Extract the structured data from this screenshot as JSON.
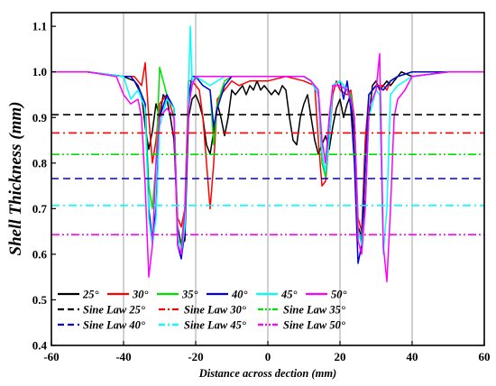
{
  "chart_data": {
    "type": "line",
    "title": "",
    "xlabel": "Distance across dection (mm)",
    "ylabel": "Shell Thickness (mm)",
    "xlim": [
      -60,
      60
    ],
    "ylim": [
      0.4,
      1.13
    ],
    "xticks": [
      "-60",
      "-40",
      "-20",
      "0",
      "20",
      "40",
      "60"
    ],
    "yticks": [
      "0.4",
      "0.5",
      "0.6",
      "0.7",
      "0.8",
      "0.9",
      "1.0",
      "1.1"
    ],
    "grid": "vertical",
    "legend_position": "bottom-left",
    "series": [
      {
        "name": "25°",
        "color": "#000000",
        "style": "solid",
        "x": [
          -60,
          -50,
          -40,
          -37,
          -35,
          -34,
          -33,
          -32,
          -31,
          -30,
          -29,
          -28,
          -27,
          -26,
          -25,
          -24,
          -23,
          -22,
          -21,
          -20,
          -19,
          -18,
          -17,
          -16,
          -15,
          -14,
          -13,
          -12,
          -11,
          -10,
          -9,
          -8,
          -7,
          -6,
          -5,
          -4,
          -3,
          -2,
          -1,
          0,
          1,
          2,
          3,
          4,
          5,
          6,
          7,
          8,
          9,
          10,
          11,
          12,
          13,
          14,
          15,
          16,
          17,
          18,
          19,
          20,
          21,
          22,
          23,
          24,
          25,
          26,
          27,
          28,
          29,
          30,
          31,
          32,
          33,
          34,
          35,
          36,
          37,
          40,
          50,
          60
        ],
        "y": [
          1.0,
          1.0,
          0.99,
          0.98,
          0.95,
          0.88,
          0.83,
          0.87,
          0.93,
          0.9,
          0.95,
          0.94,
          0.9,
          0.85,
          0.66,
          0.62,
          0.63,
          0.9,
          0.94,
          0.95,
          0.93,
          0.9,
          0.84,
          0.82,
          0.87,
          0.93,
          0.9,
          0.86,
          0.9,
          0.96,
          0.95,
          0.96,
          0.97,
          0.95,
          0.97,
          0.96,
          0.98,
          0.96,
          0.97,
          0.96,
          0.95,
          0.96,
          0.95,
          0.97,
          0.96,
          0.9,
          0.85,
          0.84,
          0.9,
          0.93,
          0.95,
          0.9,
          0.85,
          0.82,
          0.84,
          0.86,
          0.83,
          0.88,
          0.92,
          0.94,
          0.9,
          0.93,
          0.95,
          0.85,
          0.66,
          0.64,
          0.72,
          0.9,
          0.97,
          0.98,
          0.96,
          0.97,
          0.98,
          0.97,
          0.98,
          0.99,
          1.0,
          0.99,
          1.0,
          1.0
        ]
      },
      {
        "name": "30°",
        "color": "#ff0000",
        "style": "solid",
        "x": [
          -60,
          -50,
          -40,
          -37,
          -35,
          -34,
          -33,
          -32,
          -31,
          -30,
          -28,
          -26,
          -25,
          -24,
          -23,
          -22,
          -21,
          -20,
          -19,
          -18,
          -17,
          -16,
          -15,
          -14,
          -12,
          -10,
          -8,
          -5,
          0,
          5,
          10,
          13,
          14,
          15,
          16,
          17,
          18,
          19,
          20,
          22,
          23,
          24,
          25,
          26,
          27,
          28,
          30,
          32,
          33,
          34,
          36,
          40,
          50,
          60
        ],
        "y": [
          1.0,
          1.0,
          0.99,
          0.99,
          0.97,
          1.02,
          0.9,
          0.8,
          0.85,
          0.93,
          0.95,
          0.9,
          0.68,
          0.66,
          0.7,
          0.98,
          0.98,
          0.97,
          0.96,
          0.9,
          0.8,
          0.7,
          0.8,
          0.94,
          0.96,
          0.98,
          0.97,
          0.98,
          0.98,
          0.99,
          0.98,
          0.97,
          0.85,
          0.75,
          0.76,
          0.85,
          0.95,
          0.98,
          0.96,
          0.95,
          0.96,
          0.9,
          0.68,
          0.65,
          0.85,
          0.95,
          0.97,
          0.97,
          0.96,
          0.98,
          0.99,
          1.0,
          1.0,
          1.0
        ]
      },
      {
        "name": "35°",
        "color": "#00e000",
        "style": "solid",
        "x": [
          -60,
          -50,
          -40,
          -38,
          -36,
          -34,
          -33,
          -32,
          -31,
          -30,
          -28,
          -26,
          -25,
          -24,
          -23,
          -22,
          -21,
          -20,
          -18,
          -16,
          -15,
          -14,
          -12,
          -10,
          0,
          10,
          12,
          14,
          15,
          16,
          17,
          18,
          20,
          22,
          23,
          24,
          25,
          26,
          27,
          28,
          30,
          32,
          33,
          34,
          36,
          40,
          50,
          60
        ],
        "y": [
          1.0,
          1.0,
          0.99,
          0.99,
          0.97,
          0.93,
          0.75,
          0.7,
          0.8,
          1.01,
          0.95,
          0.92,
          0.63,
          0.62,
          0.7,
          0.95,
          0.99,
          0.99,
          0.97,
          0.96,
          0.84,
          0.93,
          0.98,
          0.99,
          0.99,
          0.99,
          0.98,
          0.95,
          0.8,
          0.77,
          0.85,
          0.97,
          0.98,
          0.96,
          0.95,
          0.9,
          0.65,
          0.63,
          0.8,
          0.95,
          0.97,
          0.96,
          0.97,
          0.98,
          0.99,
          1.0,
          1.0,
          1.0
        ]
      },
      {
        "name": "40°",
        "color": "#0000dd",
        "style": "solid",
        "x": [
          -60,
          -50,
          -40,
          -38,
          -36,
          -34,
          -33,
          -32,
          -31,
          -30,
          -28,
          -26,
          -25,
          -24,
          -23,
          -22,
          -21,
          -20,
          -18,
          -16,
          -15,
          -14,
          -12,
          -10,
          0,
          10,
          12,
          14,
          15,
          16,
          17,
          18,
          20,
          21,
          22,
          23,
          24,
          25,
          26,
          27,
          28,
          30,
          32,
          33,
          34,
          36,
          40,
          50,
          60
        ],
        "y": [
          1.0,
          1.0,
          0.99,
          0.99,
          0.97,
          0.93,
          0.7,
          0.63,
          0.7,
          0.9,
          0.95,
          0.92,
          0.62,
          0.59,
          0.65,
          0.94,
          0.99,
          0.99,
          0.97,
          0.96,
          0.88,
          0.92,
          0.97,
          0.99,
          0.99,
          0.99,
          0.98,
          0.95,
          0.82,
          0.78,
          0.86,
          0.97,
          0.98,
          0.94,
          0.98,
          0.92,
          0.8,
          0.58,
          0.62,
          0.8,
          0.95,
          0.97,
          0.96,
          0.97,
          0.98,
          0.99,
          1.0,
          1.0,
          1.0
        ]
      },
      {
        "name": "45°",
        "color": "#00ffff",
        "style": "solid",
        "x": [
          -60,
          -50,
          -40,
          -38,
          -36,
          -34,
          -33,
          -32,
          -31,
          -30,
          -28,
          -26,
          -25,
          -24,
          -23,
          -22,
          -21.5,
          -21,
          -20,
          -18,
          -16,
          -14,
          -12,
          -10,
          0,
          10,
          12,
          14,
          15,
          16,
          17,
          18,
          20,
          22,
          23,
          24,
          25,
          26,
          27,
          28,
          30,
          31,
          32,
          33,
          34,
          36,
          40,
          50,
          60
        ],
        "y": [
          1.0,
          1.0,
          0.99,
          0.94,
          0.96,
          0.92,
          0.68,
          0.62,
          0.68,
          0.88,
          0.94,
          0.92,
          0.65,
          0.6,
          0.66,
          0.95,
          1.1,
          0.98,
          0.99,
          0.98,
          0.97,
          0.98,
          0.99,
          0.99,
          0.99,
          0.99,
          0.98,
          0.95,
          0.82,
          0.78,
          0.85,
          0.97,
          0.98,
          0.96,
          0.94,
          0.9,
          0.65,
          0.62,
          0.7,
          0.9,
          0.96,
          0.95,
          0.6,
          0.7,
          0.95,
          0.97,
          0.99,
          1.0,
          1.0
        ]
      },
      {
        "name": "50°",
        "color": "#ff00ff",
        "style": "solid",
        "x": [
          -60,
          -50,
          -42,
          -40,
          -38,
          -36,
          -35,
          -34,
          -33,
          -32,
          -31,
          -30,
          -28,
          -26,
          -25,
          -24,
          -23,
          -22,
          -21,
          -20,
          -15,
          -10,
          0,
          10,
          12,
          14,
          15,
          16,
          17,
          18,
          20,
          22,
          23,
          24,
          25,
          26,
          27,
          28,
          30,
          31,
          32,
          33,
          34,
          35,
          36,
          38,
          40,
          50,
          60
        ],
        "y": [
          1.0,
          1.0,
          0.99,
          0.95,
          0.93,
          0.94,
          0.9,
          0.75,
          0.55,
          0.62,
          0.8,
          0.9,
          0.92,
          0.9,
          0.62,
          0.6,
          0.7,
          0.92,
          0.97,
          0.99,
          0.99,
          0.99,
          0.99,
          0.99,
          0.98,
          0.96,
          0.85,
          0.8,
          0.9,
          0.97,
          0.97,
          0.96,
          0.94,
          0.9,
          0.63,
          0.6,
          0.7,
          0.92,
          0.96,
          1.04,
          0.62,
          0.54,
          0.7,
          0.9,
          0.94,
          0.96,
          0.99,
          1.0,
          1.0
        ]
      },
      {
        "name": "Sine Law 25°",
        "color": "#000000",
        "style": "dash",
        "x": [
          -60,
          60
        ],
        "y": [
          0.906,
          0.906
        ]
      },
      {
        "name": "Sine Law 30°",
        "color": "#ff0000",
        "style": "dashdot",
        "x": [
          -60,
          60
        ],
        "y": [
          0.866,
          0.866
        ]
      },
      {
        "name": "Sine Law 35°",
        "color": "#00e000",
        "style": "dashdotdot",
        "x": [
          -60,
          60
        ],
        "y": [
          0.819,
          0.819
        ]
      },
      {
        "name": "Sine Law 40°",
        "color": "#0000dd",
        "style": "dash",
        "x": [
          -60,
          60
        ],
        "y": [
          0.766,
          0.766
        ]
      },
      {
        "name": "Sine Law 45°",
        "color": "#00ffff",
        "style": "dashdot",
        "x": [
          -60,
          60
        ],
        "y": [
          0.707,
          0.707
        ]
      },
      {
        "name": "Sine Law 50°",
        "color": "#ff00ff",
        "style": "dashdotdot",
        "x": [
          -60,
          60
        ],
        "y": [
          0.643,
          0.643
        ]
      }
    ]
  }
}
